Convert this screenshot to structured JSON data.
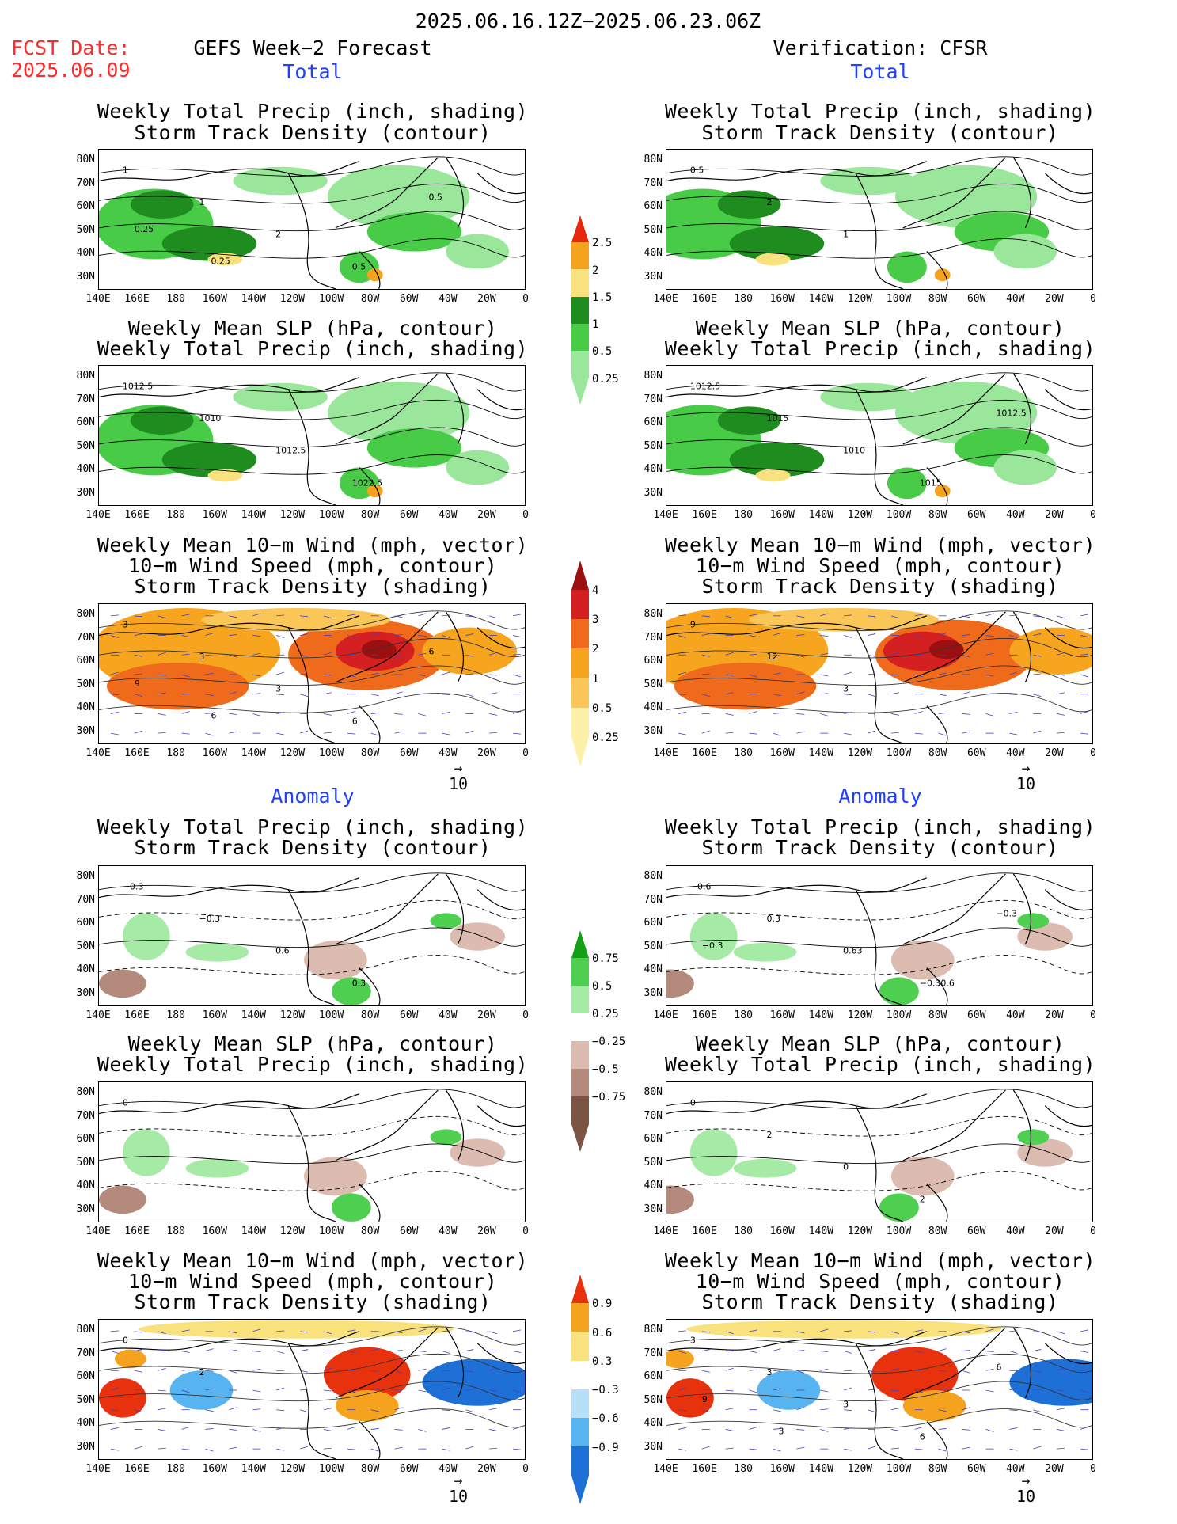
{
  "header": {
    "date_range": "2025.06.16.12Z−2025.06.23.06Z",
    "fcst_label": "FCST Date:",
    "fcst_date": "2025.06.09",
    "left_title": "GEFS Week−2 Forecast",
    "right_title": "Verification: CFSR"
  },
  "sections": {
    "total": "Total",
    "anomaly": "Anomaly"
  },
  "panel_titles": {
    "precip_storm": [
      "Weekly Total Precip (inch, shading)",
      "Storm Track Density (contour)"
    ],
    "slp_precip": [
      "Weekly Mean SLP (hPa, contour)",
      "Weekly Total Precip (inch, shading)"
    ],
    "wind_storm": [
      "Weekly Mean 10−m Wind (mph, vector)",
      "10−m Wind Speed (mph, contour)",
      "Storm Track Density (shading)"
    ]
  },
  "axes": {
    "lat_labels": [
      "80N",
      "70N",
      "60N",
      "50N",
      "40N",
      "30N"
    ],
    "lon_labels": [
      "140E",
      "160E",
      "180",
      "160W",
      "140W",
      "120W",
      "100W",
      "80W",
      "60W",
      "40W",
      "20W",
      "0"
    ]
  },
  "vector_ref": {
    "arrow": "→",
    "label": "10"
  },
  "colorbars": {
    "precip_total": {
      "labels": [
        "2.5",
        "2",
        "1.5",
        "1",
        "0.5",
        "0.25"
      ],
      "colors": [
        "#e8280e",
        "#f5a21e",
        "#f9e27e",
        "#1f8c1f",
        "#48cc48",
        "#9ae69a"
      ]
    },
    "storm_total": {
      "labels": [
        "4",
        "3",
        "2",
        "1",
        "0.5",
        "0.25"
      ],
      "colors": [
        "#9a0f0f",
        "#d42020",
        "#f06a1c",
        "#f7a41e",
        "#fbc658",
        "#fdf0a8"
      ]
    },
    "precip_anom": {
      "labels": [
        "0.75",
        "0.5",
        "0.25",
        "−0.25",
        "−0.5",
        "−0.75"
      ],
      "colors": [
        "#14a014",
        "#4fcf4f",
        "#a5eba5",
        "#ffffff",
        "#dcbcb0",
        "#b48a7c",
        "#7c5444"
      ]
    },
    "storm_anom": {
      "labels": [
        "0.9",
        "0.6",
        "0.3",
        "−0.3",
        "−0.6",
        "−0.9"
      ],
      "colors": [
        "#e8320e",
        "#f5a21e",
        "#f9e27e",
        "#ffffff",
        "#b6e0f7",
        "#58b4f0",
        "#1e70d6"
      ]
    }
  },
  "contour_labels": {
    "f_total_precip": [
      "1",
      "1",
      "2",
      "0.5",
      "0.5",
      "0.25",
      "0.25"
    ],
    "v_total_precip": [
      "0.5",
      "2",
      "1"
    ],
    "f_total_slp": [
      "1012.5",
      "1010",
      "1012.5",
      "1022.5"
    ],
    "v_total_slp": [
      "1012.5",
      "1015",
      "1010",
      "1015",
      "1012.5"
    ],
    "f_total_wind": [
      "3",
      "3",
      "3",
      "6",
      "6",
      "9",
      "6"
    ],
    "v_total_wind": [
      "9",
      "12",
      "3"
    ],
    "f_anom_precip": [
      "−0.3",
      "−0.3",
      "0.6",
      "0.3"
    ],
    "v_anom_precip": [
      "−0.6",
      "0.3",
      "0.63",
      "−0.30.6",
      "−0.3",
      "−0.3"
    ],
    "f_anom_slp": [
      "0"
    ],
    "v_anom_slp": [
      "0",
      "2",
      "0",
      "2"
    ],
    "f_anom_wind": [
      "0",
      "2"
    ],
    "v_anom_wind": [
      "3",
      "3",
      "3",
      "6",
      "6",
      "9",
      "3"
    ]
  }
}
